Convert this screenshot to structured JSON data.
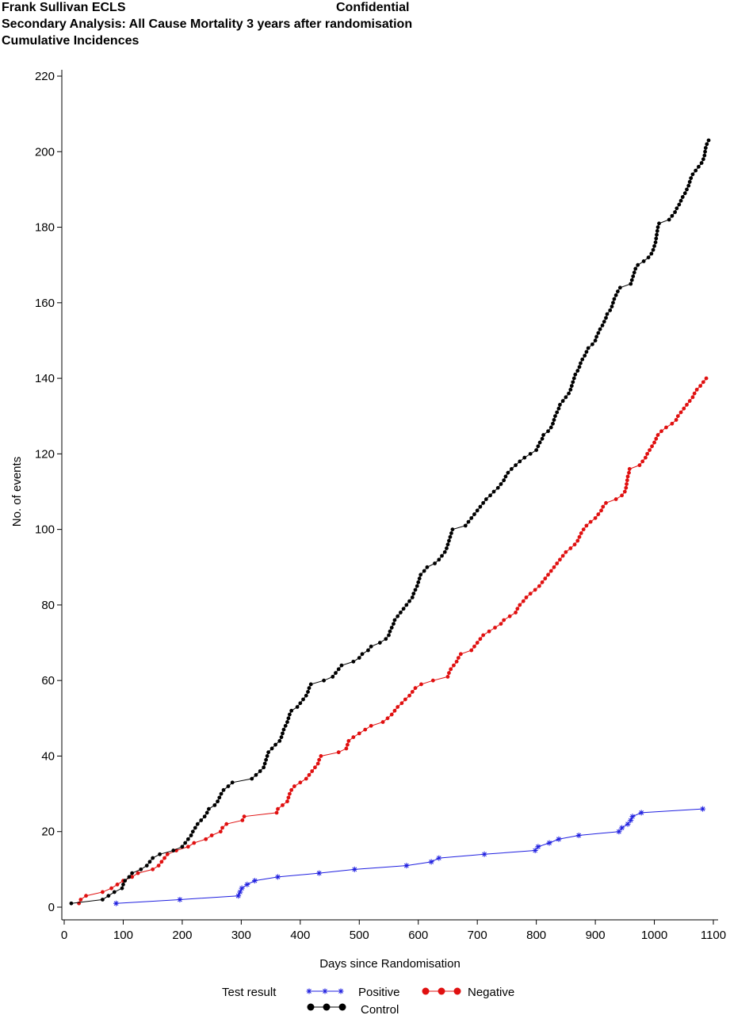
{
  "chart_data": {
    "type": "line",
    "header_left": "Frank Sullivan ECLS",
    "header_right": "Confidential",
    "title": "Secondary Analysis: All Cause Mortality 3 years after randomisation",
    "subtitle": "Cumulative Incidences",
    "xlabel": "Days since Randomisation",
    "ylabel": "No.  of  events",
    "legend_title": "Test  result",
    "xlim": [
      0,
      1100
    ],
    "xticks": [
      0,
      100,
      200,
      300,
      400,
      500,
      600,
      700,
      800,
      900,
      1000,
      1100
    ],
    "ylim": [
      0,
      220
    ],
    "yticks": [
      0,
      20,
      40,
      60,
      80,
      100,
      120,
      140,
      160,
      180,
      200,
      220
    ],
    "series": [
      {
        "name": "Positive",
        "color": "#1f1fe0",
        "marker": "star",
        "x": [
          88,
          196,
          295,
          298,
          301,
          310,
          323,
          362,
          432,
          492,
          580,
          622,
          635,
          712,
          798,
          803,
          822,
          838,
          872,
          940,
          945,
          955,
          960,
          963,
          978,
          1082
        ],
        "values": [
          1,
          2,
          3,
          4,
          5,
          6,
          7,
          8,
          9,
          10,
          11,
          12,
          13,
          14,
          15,
          16,
          17,
          18,
          19,
          20,
          21,
          22,
          23,
          24,
          25,
          26
        ]
      },
      {
        "name": "Negative",
        "color": "#e01010",
        "marker": "circle",
        "x": [
          25,
          28,
          37,
          65,
          80,
          90,
          100,
          115,
          125,
          150,
          160,
          165,
          170,
          175,
          190,
          210,
          220,
          240,
          250,
          265,
          268,
          275,
          302,
          305,
          360,
          362,
          370,
          378,
          380,
          382,
          385,
          390,
          400,
          410,
          415,
          420,
          425,
          430,
          432,
          435,
          465,
          478,
          480,
          482,
          490,
          500,
          510,
          520,
          540,
          548,
          555,
          560,
          565,
          572,
          578,
          585,
          590,
          595,
          605,
          625,
          650,
          652,
          655,
          660,
          665,
          668,
          672,
          690,
          695,
          700,
          705,
          710,
          720,
          730,
          740,
          745,
          755,
          765,
          768,
          772,
          778,
          783,
          790,
          798,
          805,
          810,
          815,
          820,
          825,
          830,
          835,
          840,
          845,
          850,
          858,
          865,
          870,
          873,
          876,
          880,
          885,
          892,
          900,
          905,
          910,
          913,
          918,
          935,
          945,
          950,
          952,
          953,
          954,
          955,
          957,
          958,
          975,
          980,
          985,
          988,
          992,
          996,
          1000,
          1003,
          1006,
          1012,
          1020,
          1030,
          1037,
          1040,
          1045,
          1050,
          1055,
          1060,
          1065,
          1068,
          1072,
          1078,
          1083,
          1088
        ],
        "values": [
          1,
          2,
          3,
          4,
          5,
          6,
          7,
          8,
          9,
          10,
          11,
          12,
          13,
          14,
          15,
          16,
          17,
          18,
          19,
          20,
          21,
          22,
          23,
          24,
          25,
          26,
          27,
          28,
          29,
          30,
          31,
          32,
          33,
          34,
          35,
          36,
          37,
          38,
          39,
          40,
          41,
          42,
          43,
          44,
          45,
          46,
          47,
          48,
          49,
          50,
          51,
          52,
          53,
          54,
          55,
          56,
          57,
          58,
          59,
          60,
          61,
          62,
          63,
          64,
          65,
          66,
          67,
          68,
          69,
          70,
          71,
          72,
          73,
          74,
          75,
          76,
          77,
          78,
          79,
          80,
          81,
          82,
          83,
          84,
          85,
          86,
          87,
          88,
          89,
          90,
          91,
          92,
          93,
          94,
          95,
          96,
          97,
          98,
          99,
          100,
          101,
          102,
          103,
          104,
          105,
          106,
          107,
          108,
          109,
          110,
          111,
          112,
          113,
          114,
          115,
          116,
          117,
          118,
          119,
          120,
          121,
          122,
          123,
          124,
          125,
          126,
          127,
          128,
          129,
          130,
          131,
          132,
          133,
          134,
          135,
          136,
          137,
          138,
          139,
          140
        ]
      },
      {
        "name": "Control",
        "color": "#000000",
        "marker": "circle",
        "x": [
          12,
          65,
          75,
          85,
          98,
          100,
          103,
          110,
          115,
          130,
          140,
          145,
          150,
          162,
          185,
          200,
          205,
          210,
          215,
          218,
          222,
          226,
          232,
          238,
          242,
          245,
          255,
          260,
          263,
          266,
          270,
          278,
          285,
          318,
          325,
          332,
          338,
          340,
          342,
          344,
          346,
          352,
          358,
          365,
          368,
          370,
          372,
          375,
          378,
          380,
          382,
          385,
          395,
          400,
          405,
          410,
          413,
          415,
          418,
          440,
          455,
          460,
          465,
          470,
          490,
          500,
          505,
          515,
          520,
          535,
          545,
          550,
          552,
          555,
          558,
          560,
          565,
          570,
          575,
          580,
          585,
          590,
          592,
          595,
          598,
          600,
          602,
          604,
          610,
          615,
          628,
          635,
          640,
          645,
          648,
          650,
          652,
          654,
          656,
          658,
          680,
          685,
          690,
          695,
          700,
          705,
          710,
          715,
          722,
          728,
          735,
          740,
          745,
          748,
          752,
          758,
          765,
          772,
          780,
          790,
          800,
          803,
          806,
          810,
          812,
          820,
          825,
          828,
          830,
          832,
          835,
          838,
          840,
          845,
          850,
          855,
          858,
          860,
          862,
          864,
          866,
          870,
          873,
          875,
          878,
          882,
          885,
          888,
          895,
          900,
          902,
          905,
          908,
          912,
          915,
          918,
          920,
          925,
          928,
          930,
          932,
          935,
          938,
          942,
          960,
          962,
          964,
          966,
          968,
          972,
          982,
          990,
          995,
          998,
          1000,
          1002,
          1003,
          1004,
          1005,
          1006,
          1008,
          1025,
          1030,
          1035,
          1038,
          1042,
          1045,
          1048,
          1052,
          1055,
          1058,
          1060,
          1062,
          1065,
          1070,
          1075,
          1080,
          1083,
          1085,
          1086,
          1087,
          1089,
          1092
        ],
        "values": [
          1,
          2,
          3,
          4,
          5,
          6,
          7,
          8,
          9,
          10,
          11,
          12,
          13,
          14,
          15,
          16,
          17,
          18,
          19,
          20,
          21,
          22,
          23,
          24,
          25,
          26,
          27,
          28,
          29,
          30,
          31,
          32,
          33,
          34,
          35,
          36,
          37,
          38,
          39,
          40,
          41,
          42,
          43,
          44,
          45,
          46,
          47,
          48,
          49,
          50,
          51,
          52,
          53,
          54,
          55,
          56,
          57,
          58,
          59,
          60,
          61,
          62,
          63,
          64,
          65,
          66,
          67,
          68,
          69,
          70,
          71,
          72,
          73,
          74,
          75,
          76,
          77,
          78,
          79,
          80,
          81,
          82,
          83,
          84,
          85,
          86,
          87,
          88,
          89,
          90,
          91,
          92,
          93,
          94,
          95,
          96,
          97,
          98,
          99,
          100,
          101,
          102,
          103,
          104,
          105,
          106,
          107,
          108,
          109,
          110,
          111,
          112,
          113,
          114,
          115,
          116,
          117,
          118,
          119,
          120,
          121,
          122,
          123,
          124,
          125,
          126,
          127,
          128,
          129,
          130,
          131,
          132,
          133,
          134,
          135,
          136,
          137,
          138,
          139,
          140,
          141,
          142,
          143,
          144,
          145,
          146,
          147,
          148,
          149,
          150,
          151,
          152,
          153,
          154,
          155,
          156,
          157,
          158,
          159,
          160,
          161,
          162,
          163,
          164,
          165,
          166,
          167,
          168,
          169,
          170,
          171,
          172,
          173,
          174,
          175,
          176,
          177,
          178,
          179,
          180,
          181,
          182,
          183,
          184,
          185,
          186,
          187,
          188,
          189,
          190,
          191,
          192,
          193,
          194,
          195,
          196,
          197,
          198,
          199,
          200,
          201,
          202,
          203
        ]
      }
    ]
  }
}
